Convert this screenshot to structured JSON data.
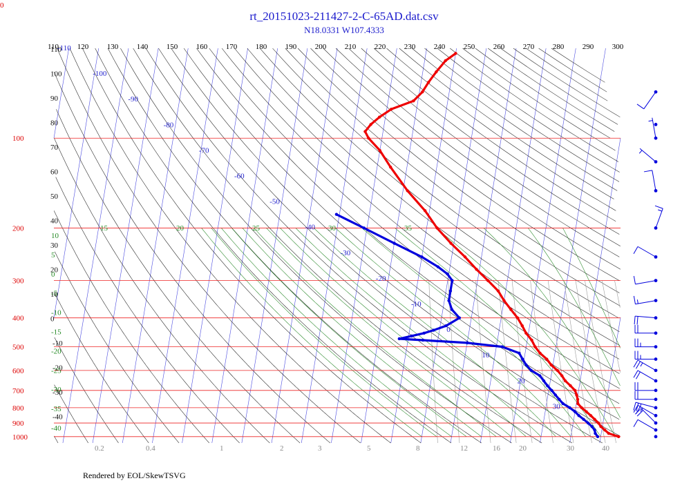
{
  "chart_data": {
    "type": "skew-t",
    "title": "rt_20151023-211427-2-C-65AD.dat.csv",
    "subtitle": "N18.0331 W107.4333",
    "footer": "Rendered by EOL/SkewTSVG",
    "corner_label": "0",
    "pressure_levels": [
      100,
      200,
      300,
      400,
      500,
      600,
      700,
      800,
      900,
      1000
    ],
    "temperature_ticks": [
      110,
      120,
      130,
      140,
      150,
      160,
      170,
      180,
      190,
      200,
      210,
      220,
      230,
      240,
      250,
      260,
      270,
      280,
      290,
      300
    ],
    "isotherm_labels": [
      -110,
      -100,
      -90,
      -80,
      -70,
      -60,
      -50,
      -40,
      -30,
      -20,
      -10,
      0,
      10,
      20,
      30
    ],
    "theta_labels": [
      110,
      100,
      90,
      80,
      70,
      60,
      50,
      40,
      30,
      20,
      10,
      0,
      -10,
      -20,
      -30,
      -40
    ],
    "moist_adiabat_top_labels": [
      15,
      20,
      25,
      30,
      35
    ],
    "moist_adiabat_left_labels": [
      10,
      5,
      0,
      -5,
      -10,
      -15,
      -20,
      -25,
      -30,
      -35,
      -40
    ],
    "mixing_ratio_labels": [
      "0.2",
      "0.4",
      "1",
      "2",
      "3",
      "5",
      "8",
      "12",
      "16",
      "20",
      "30",
      "40"
    ],
    "series": [
      {
        "color": "#ee0000",
        "points": [
          [
            1000,
            26.0
          ],
          [
            975,
            22.5
          ],
          [
            950,
            21.0
          ],
          [
            925,
            19.5
          ],
          [
            900,
            18.5
          ],
          [
            875,
            17.0
          ],
          [
            850,
            15.5
          ],
          [
            825,
            13.8
          ],
          [
            800,
            12.0
          ],
          [
            775,
            10.5
          ],
          [
            750,
            10.2
          ],
          [
            725,
            9.6
          ],
          [
            700,
            8.8
          ],
          [
            675,
            7.0
          ],
          [
            650,
            5.0
          ],
          [
            625,
            3.6
          ],
          [
            600,
            1.8
          ],
          [
            575,
            -0.6
          ],
          [
            550,
            -2.4
          ],
          [
            525,
            -5.0
          ],
          [
            500,
            -7.0
          ],
          [
            475,
            -8.5
          ],
          [
            450,
            -10.8
          ],
          [
            425,
            -12.5
          ],
          [
            400,
            -14.5
          ],
          [
            375,
            -17.2
          ],
          [
            350,
            -20.0
          ],
          [
            325,
            -22.5
          ],
          [
            300,
            -26.5
          ],
          [
            275,
            -31.0
          ],
          [
            250,
            -35.5
          ],
          [
            225,
            -41.0
          ],
          [
            200,
            -46.5
          ],
          [
            175,
            -51.5
          ],
          [
            150,
            -58.5
          ],
          [
            125,
            -65.5
          ],
          [
            110,
            -70.0
          ],
          [
            100,
            -74.5
          ],
          [
            95,
            -76.0
          ],
          [
            90,
            -74.5
          ],
          [
            85,
            -72.0
          ],
          [
            80,
            -68.5
          ],
          [
            75,
            -61.5
          ],
          [
            70,
            -59.0
          ],
          [
            65,
            -57.5
          ],
          [
            60,
            -55.5
          ],
          [
            55,
            -53.0
          ],
          [
            52,
            -50.0
          ]
        ]
      },
      {
        "color": "#0000dd",
        "points": [
          [
            1000,
            19.0
          ],
          [
            975,
            18.0
          ],
          [
            950,
            17.6
          ],
          [
            925,
            16.5
          ],
          [
            900,
            15.0
          ],
          [
            875,
            13.3
          ],
          [
            850,
            11.5
          ],
          [
            825,
            10.0
          ],
          [
            800,
            8.0
          ],
          [
            775,
            5.5
          ],
          [
            750,
            4.0
          ],
          [
            725,
            2.5
          ],
          [
            700,
            1.0
          ],
          [
            675,
            -0.7
          ],
          [
            650,
            -2.2
          ],
          [
            625,
            -3.8
          ],
          [
            600,
            -7.0
          ],
          [
            575,
            -9.0
          ],
          [
            550,
            -10.5
          ],
          [
            525,
            -12.0
          ],
          [
            500,
            -18.0
          ],
          [
            485,
            -30.0
          ],
          [
            475,
            -45.0
          ],
          [
            470,
            -53.0
          ],
          [
            460,
            -49.0
          ],
          [
            450,
            -45.0
          ],
          [
            440,
            -42.0
          ],
          [
            425,
            -38.0
          ],
          [
            400,
            -34.0
          ],
          [
            375,
            -37.0
          ],
          [
            350,
            -38.5
          ],
          [
            325,
            -38.5
          ],
          [
            300,
            -38.5
          ],
          [
            285,
            -40.5
          ],
          [
            270,
            -44.0
          ],
          [
            250,
            -50.0
          ],
          [
            225,
            -60.0
          ],
          [
            200,
            -71.0
          ],
          [
            180,
            -81.0
          ]
        ]
      }
    ],
    "wind_barbs": [
      {
        "p": 1000,
        "dir": 300,
        "kt": 0
      },
      {
        "p": 950,
        "dir": 300,
        "kt": 10
      },
      {
        "p": 900,
        "dir": 315,
        "kt": 20
      },
      {
        "p": 850,
        "dir": 300,
        "kt": 25
      },
      {
        "p": 800,
        "dir": 285,
        "kt": 25
      },
      {
        "p": 750,
        "dir": 270,
        "kt": 20
      },
      {
        "p": 700,
        "dir": 270,
        "kt": 20
      },
      {
        "p": 650,
        "dir": 300,
        "kt": 20
      },
      {
        "p": 600,
        "dir": 300,
        "kt": 25
      },
      {
        "p": 550,
        "dir": 270,
        "kt": 25
      },
      {
        "p": 500,
        "dir": 270,
        "kt": 25
      },
      {
        "p": 450,
        "dir": 270,
        "kt": 20
      },
      {
        "p": 400,
        "dir": 275,
        "kt": 20
      },
      {
        "p": 350,
        "dir": 260,
        "kt": 15
      },
      {
        "p": 300,
        "dir": 260,
        "kt": 10
      },
      {
        "p": 250,
        "dir": 300,
        "kt": 10
      },
      {
        "p": 200,
        "dir": 20,
        "kt": 15
      },
      {
        "p": 150,
        "dir": 350,
        "kt": 10
      },
      {
        "p": 120,
        "dir": 310,
        "kt": 5
      },
      {
        "p": 100,
        "dir": 350,
        "kt": 5
      },
      {
        "p": 90,
        "dir": 0,
        "kt": 0
      },
      {
        "p": 70,
        "dir": 215,
        "kt": 10
      }
    ]
  }
}
